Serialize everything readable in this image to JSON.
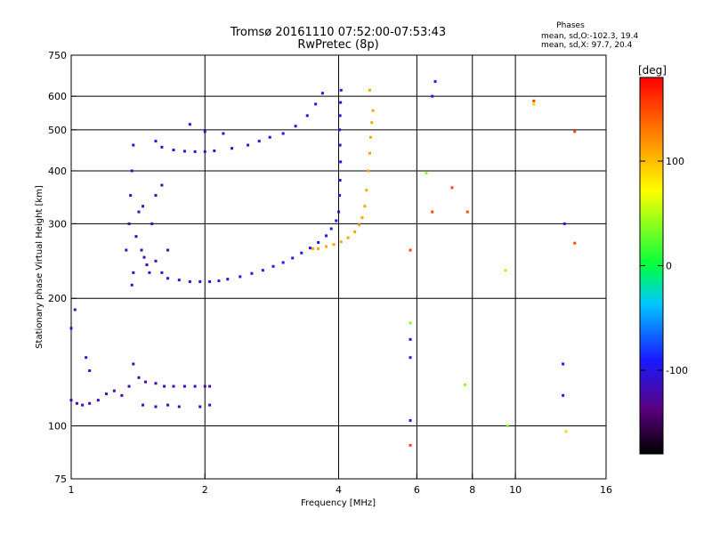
{
  "chart_data": {
    "type": "scatter",
    "title": "Tromsø 20161110 07:52:00-07:53:43",
    "subtitle": "RwPretec (8p)",
    "stats": {
      "header": "Phases",
      "o_line": "mean, sd,O:-102.3, 19.4",
      "x_line": "mean, sd,X:  97.7, 20.4"
    },
    "xlabel": "Frequency [MHz]",
    "ylabel": "Stationary phase Virtual Height [km]",
    "x_scale": "log",
    "y_scale": "log",
    "xlim": [
      1,
      16
    ],
    "ylim": [
      75,
      750
    ],
    "xticks": [
      1,
      2,
      4,
      6,
      8,
      10,
      16
    ],
    "xtick_labels": [
      "1",
      "2",
      "4",
      "6",
      "8",
      "10",
      "16"
    ],
    "x_gridlines": [
      2,
      4,
      6,
      8,
      10
    ],
    "yticks": [
      75,
      100,
      200,
      300,
      400,
      500,
      600,
      750
    ],
    "ytick_labels": [
      "75",
      "100",
      "200",
      "300",
      "400",
      "500",
      "600",
      "750"
    ],
    "y_gridlines": [
      100,
      200,
      300,
      400,
      500,
      600
    ],
    "grid": true,
    "colorbar": {
      "label": "[deg]",
      "min": -180,
      "max": 180,
      "ticks": [
        100,
        0,
        -100
      ],
      "tick_labels": [
        "100",
        "0",
        "-100"
      ]
    },
    "series": [
      {
        "phase_deg": -120,
        "points": [
          [
            1.0,
            115
          ],
          [
            1.03,
            113
          ],
          [
            1.06,
            112
          ],
          [
            1.1,
            113
          ],
          [
            1.15,
            115
          ],
          [
            1.2,
            119
          ],
          [
            1.25,
            121
          ],
          [
            1.3,
            118
          ],
          [
            1.35,
            124
          ],
          [
            1.38,
            140
          ],
          [
            1.42,
            130
          ],
          [
            1.47,
            127
          ],
          [
            1.55,
            126
          ],
          [
            1.62,
            124
          ],
          [
            1.7,
            124
          ],
          [
            1.8,
            124
          ],
          [
            1.9,
            124
          ],
          [
            2.0,
            124
          ],
          [
            2.05,
            124
          ]
        ]
      },
      {
        "phase_deg": -110,
        "points": [
          [
            1.0,
            170
          ],
          [
            1.02,
            188
          ],
          [
            1.08,
            145
          ],
          [
            1.1,
            135
          ],
          [
            1.45,
            112
          ],
          [
            1.55,
            111
          ],
          [
            1.65,
            112
          ],
          [
            1.75,
            111
          ],
          [
            1.95,
            111
          ],
          [
            2.05,
            112
          ]
        ]
      },
      {
        "phase_deg": -115,
        "points": [
          [
            1.33,
            260
          ],
          [
            1.35,
            300
          ],
          [
            1.36,
            350
          ],
          [
            1.37,
            400
          ],
          [
            1.38,
            460
          ],
          [
            1.38,
            230
          ],
          [
            1.37,
            215
          ],
          [
            1.4,
            280
          ],
          [
            1.42,
            320
          ],
          [
            1.44,
            260
          ],
          [
            1.46,
            250
          ],
          [
            1.48,
            240
          ],
          [
            1.5,
            230
          ],
          [
            1.55,
            245
          ],
          [
            1.6,
            230
          ],
          [
            1.65,
            260
          ],
          [
            1.55,
            350
          ],
          [
            1.6,
            370
          ],
          [
            1.52,
            300
          ],
          [
            1.45,
            330
          ]
        ]
      },
      {
        "phase_deg": -105,
        "points": [
          [
            1.55,
            470
          ],
          [
            1.6,
            455
          ],
          [
            1.7,
            448
          ],
          [
            1.8,
            445
          ],
          [
            1.9,
            444
          ],
          [
            2.0,
            444
          ],
          [
            2.1,
            446
          ],
          [
            2.3,
            452
          ],
          [
            2.5,
            460
          ],
          [
            2.65,
            470
          ],
          [
            2.8,
            480
          ],
          [
            3.0,
            490
          ],
          [
            3.2,
            510
          ],
          [
            3.4,
            540
          ],
          [
            3.55,
            575
          ],
          [
            3.68,
            610
          ],
          [
            1.85,
            515
          ],
          [
            2.0,
            495
          ],
          [
            2.2,
            490
          ]
        ]
      },
      {
        "phase_deg": -100,
        "points": [
          [
            1.65,
            223
          ],
          [
            1.75,
            221
          ],
          [
            1.85,
            219
          ],
          [
            1.95,
            219
          ],
          [
            2.05,
            219
          ],
          [
            2.15,
            220
          ],
          [
            2.25,
            222
          ],
          [
            2.4,
            225
          ],
          [
            2.55,
            229
          ],
          [
            2.7,
            233
          ],
          [
            2.85,
            238
          ],
          [
            3.0,
            243
          ],
          [
            3.15,
            249
          ],
          [
            3.3,
            256
          ],
          [
            3.45,
            263
          ],
          [
            3.6,
            271
          ],
          [
            3.75,
            281
          ],
          [
            3.85,
            292
          ],
          [
            3.95,
            305
          ],
          [
            4.0,
            320
          ],
          [
            4.02,
            350
          ],
          [
            4.03,
            380
          ],
          [
            4.04,
            420
          ],
          [
            4.03,
            460
          ],
          [
            4.02,
            500
          ],
          [
            4.03,
            540
          ],
          [
            4.04,
            580
          ],
          [
            4.05,
            620
          ]
        ]
      },
      {
        "phase_deg": 110,
        "points": [
          [
            3.5,
            262
          ],
          [
            3.6,
            262
          ],
          [
            3.75,
            265
          ],
          [
            3.9,
            268
          ],
          [
            4.05,
            272
          ],
          [
            4.2,
            278
          ],
          [
            4.35,
            287
          ],
          [
            4.45,
            298
          ],
          [
            4.52,
            310
          ],
          [
            4.58,
            330
          ],
          [
            4.62,
            360
          ],
          [
            4.66,
            400
          ],
          [
            4.7,
            440
          ],
          [
            4.72,
            480
          ],
          [
            4.75,
            520
          ],
          [
            4.78,
            555
          ],
          [
            4.7,
            620
          ]
        ]
      },
      {
        "phase_deg": -90,
        "points": [
          [
            5.8,
            160
          ],
          [
            5.8,
            103
          ],
          [
            5.8,
            145
          ],
          [
            6.5,
            600
          ],
          [
            6.6,
            650
          ],
          [
            12.8,
            140
          ],
          [
            12.8,
            118
          ],
          [
            12.9,
            300
          ]
        ]
      },
      {
        "phase_deg": 40,
        "points": [
          [
            5.8,
            175
          ],
          [
            6.3,
            395
          ],
          [
            7.7,
            125
          ],
          [
            9.6,
            100
          ]
        ]
      },
      {
        "phase_deg": 150,
        "points": [
          [
            5.8,
            260
          ],
          [
            5.8,
            90
          ],
          [
            6.5,
            320
          ],
          [
            7.2,
            365
          ],
          [
            7.8,
            320
          ],
          [
            11.0,
            585
          ],
          [
            13.6,
            495
          ],
          [
            13.6,
            270
          ]
        ]
      },
      {
        "phase_deg": 90,
        "points": [
          [
            9.5,
            233
          ],
          [
            11.0,
            575
          ],
          [
            13.0,
            97
          ]
        ]
      }
    ]
  }
}
